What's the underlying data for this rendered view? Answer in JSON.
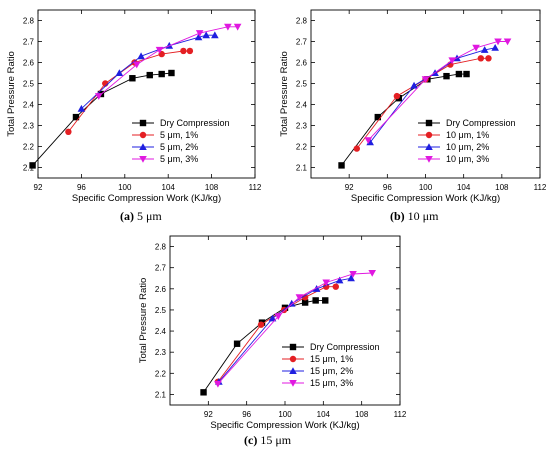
{
  "colors": {
    "dry": "#000000",
    "one": "#e41f23",
    "two": "#1f1fe0",
    "three": "#e018e0",
    "fit": "#4caf50"
  },
  "chart_data": [
    {
      "type": "line",
      "caption": {
        "label": "(a)",
        "text": "5 μm"
      },
      "xlabel": "Specific Compression Work (KJ/kg)",
      "ylabel": "Total Pressure Ratio",
      "xlim": [
        92,
        112
      ],
      "ylim": [
        2.05,
        2.85
      ],
      "xticks": [
        "92",
        "96",
        "100",
        "104",
        "108",
        "112"
      ],
      "yticks": [
        "2.1",
        "2.2",
        "2.3",
        "2.4",
        "2.5",
        "2.6",
        "2.7",
        "2.8"
      ],
      "series": [
        {
          "name": "Dry Compression",
          "marker": "square",
          "color": "#000000",
          "x": [
            91.5,
            95.5,
            97.8,
            100.7,
            102.3,
            103.4,
            104.3
          ],
          "y": [
            2.11,
            2.34,
            2.45,
            2.525,
            2.54,
            2.545,
            2.55
          ]
        },
        {
          "name": "5 μm, 1%",
          "marker": "circle",
          "color": "#e41f23",
          "x": [
            94.8,
            98.2,
            100.9,
            103.4,
            105.4,
            106.0
          ],
          "y": [
            2.27,
            2.5,
            2.6,
            2.64,
            2.655,
            2.655
          ]
        },
        {
          "name": "5 μm, 2%",
          "marker": "triangle-up",
          "color": "#1f1fe0",
          "x": [
            96.0,
            99.5,
            101.5,
            104.1,
            106.8,
            107.5,
            108.3
          ],
          "y": [
            2.38,
            2.55,
            2.63,
            2.68,
            2.72,
            2.73,
            2.73
          ]
        },
        {
          "name": "5 μm, 3%",
          "marker": "triangle-down",
          "color": "#e018e0",
          "x": [
            97.6,
            101.1,
            103.2,
            106.9,
            109.5,
            110.4
          ],
          "y": [
            2.44,
            2.59,
            2.66,
            2.74,
            2.77,
            2.77
          ]
        }
      ]
    },
    {
      "type": "line",
      "caption": {
        "label": "(b)",
        "text": "10 μm"
      },
      "xlabel": "Specific Compression Work (KJ/kg)",
      "ylabel": "Total Pressure Ratio",
      "xlim": [
        88,
        112
      ],
      "ylim": [
        2.05,
        2.85
      ],
      "xticks": [
        "92",
        "96",
        "100",
        "104",
        "108",
        "112"
      ],
      "yticks": [
        "2.1",
        "2.2",
        "2.3",
        "2.4",
        "2.5",
        "2.6",
        "2.7",
        "2.8"
      ],
      "series": [
        {
          "name": "Dry Compression",
          "marker": "square",
          "color": "#000000",
          "x": [
            91.2,
            95.0,
            97.2,
            100.2,
            102.2,
            103.5,
            104.3
          ],
          "y": [
            2.11,
            2.34,
            2.43,
            2.52,
            2.535,
            2.545,
            2.545
          ]
        },
        {
          "name": "10 μm, 1%",
          "marker": "circle",
          "color": "#e41f23",
          "x": [
            92.8,
            97.0,
            100.0,
            102.6,
            105.8,
            106.6
          ],
          "y": [
            2.19,
            2.44,
            2.52,
            2.59,
            2.62,
            2.62
          ]
        },
        {
          "name": "10 μm, 2%",
          "marker": "triangle-up",
          "color": "#1f1fe0",
          "x": [
            94.2,
            98.8,
            101.0,
            103.3,
            106.2,
            107.3
          ],
          "y": [
            2.22,
            2.49,
            2.55,
            2.62,
            2.66,
            2.67
          ]
        },
        {
          "name": "10 μm, 3%",
          "marker": "triangle-down",
          "color": "#e018e0",
          "x": [
            94.0,
            100.0,
            102.8,
            105.3,
            107.6,
            108.6
          ],
          "y": [
            2.23,
            2.52,
            2.61,
            2.67,
            2.7,
            2.7
          ]
        }
      ]
    },
    {
      "type": "line",
      "caption": {
        "label": "(c)",
        "text": "15 μm"
      },
      "xlabel": "Specific Compression Work (KJ/kg)",
      "ylabel": "Total Pressure Ratio",
      "xlim": [
        88,
        112
      ],
      "ylim": [
        2.05,
        2.85
      ],
      "xticks": [
        "92",
        "96",
        "100",
        "104",
        "108",
        "112"
      ],
      "yticks": [
        "2.1",
        "2.2",
        "2.3",
        "2.4",
        "2.5",
        "2.6",
        "2.7",
        "2.8"
      ],
      "series": [
        {
          "name": "Dry Compression",
          "marker": "square",
          "color": "#000000",
          "x": [
            91.5,
            95.0,
            97.6,
            100.0,
            102.1,
            103.2,
            104.2
          ],
          "y": [
            2.11,
            2.34,
            2.44,
            2.51,
            2.535,
            2.545,
            2.545
          ]
        },
        {
          "name": "15 μm, 1%",
          "marker": "circle",
          "color": "#e41f23",
          "x": [
            93.0,
            97.5,
            99.9,
            102.1,
            104.3,
            105.3
          ],
          "y": [
            2.16,
            2.43,
            2.5,
            2.56,
            2.61,
            2.61
          ]
        },
        {
          "name": "15 μm, 2%",
          "marker": "triangle-up",
          "color": "#1f1fe0",
          "x": [
            93.1,
            98.7,
            100.7,
            103.3,
            105.7,
            106.9
          ],
          "y": [
            2.16,
            2.46,
            2.53,
            2.6,
            2.64,
            2.65
          ]
        },
        {
          "name": "15 μm, 3%",
          "marker": "triangle-down",
          "color": "#e018e0",
          "x": [
            93.0,
            99.3,
            101.5,
            104.3,
            107.1,
            109.1
          ],
          "y": [
            2.15,
            2.47,
            2.56,
            2.63,
            2.67,
            2.675
          ]
        }
      ]
    }
  ]
}
